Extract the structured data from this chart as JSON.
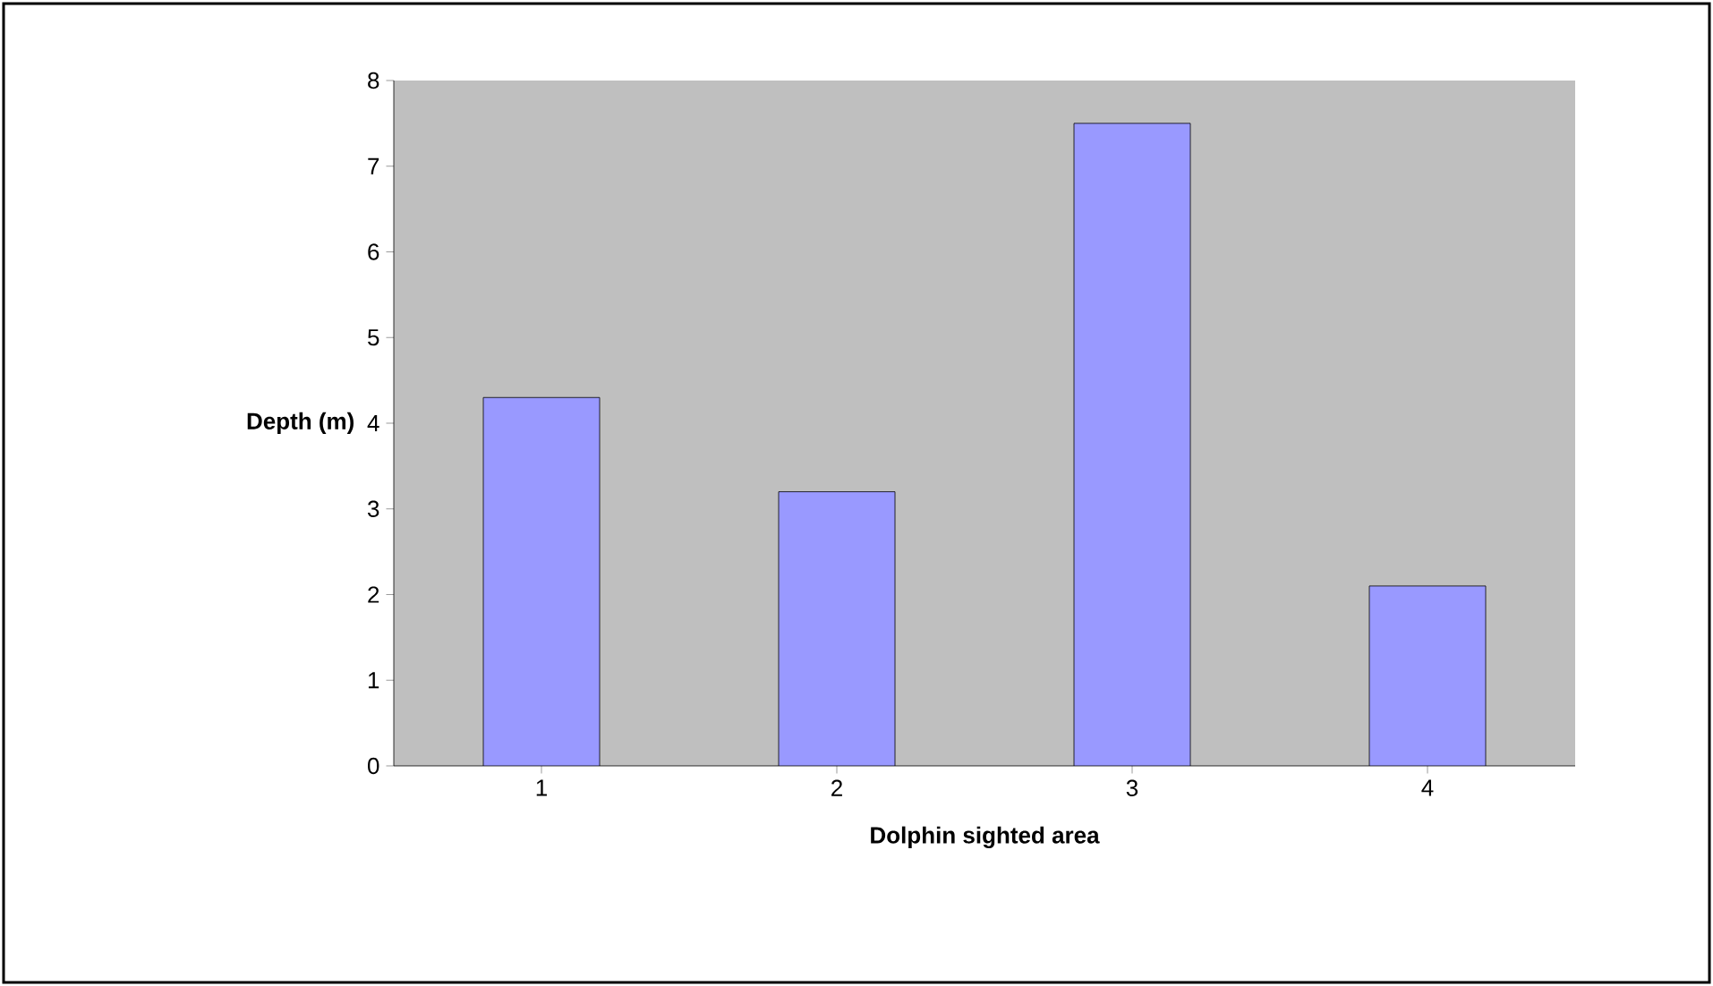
{
  "chart_data": {
    "type": "bar",
    "xlabel": "Dolphin sighted area",
    "ylabel": "Depth (m)",
    "categories": [
      "1",
      "2",
      "3",
      "4"
    ],
    "values": [
      4.3,
      3.2,
      7.5,
      2.1
    ],
    "color": "#9999ff",
    "ylim": [
      0,
      8
    ],
    "yticks": [
      0,
      1,
      2,
      3,
      4,
      5,
      6,
      7,
      8
    ],
    "grid": false
  }
}
